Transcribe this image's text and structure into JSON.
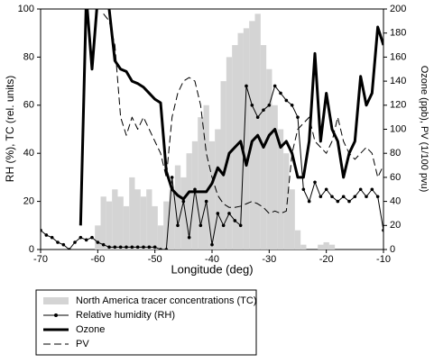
{
  "chart_data": {
    "type": "line",
    "xlabel": "Longitude (deg)",
    "ylabel": "RH (%), TC (rel. units)",
    "y2label": "Ozone (ppb), PV (1/100 pvu)",
    "x": [
      -70,
      -69,
      -68,
      -67,
      -66,
      -65,
      -64,
      -63,
      -62,
      -61,
      -60,
      -59,
      -58,
      -57,
      -56,
      -55,
      -54,
      -53,
      -52,
      -51,
      -50,
      -49,
      -48,
      -47,
      -46,
      -45,
      -44,
      -43,
      -42,
      -41,
      -40,
      -39,
      -38,
      -37,
      -36,
      -35,
      -34,
      -33,
      -32,
      -31,
      -30,
      -29,
      -28,
      -27,
      -26,
      -25,
      -24,
      -23,
      -22,
      -21,
      -20,
      -19,
      -18,
      -17,
      -16,
      -15,
      -14,
      -13,
      -12,
      -11,
      -10
    ],
    "xlim": [
      -70,
      -10
    ],
    "xticks": [
      -70,
      -60,
      -50,
      -40,
      -30,
      -20,
      -10
    ],
    "ylim": [
      0,
      100
    ],
    "yticks": [
      0,
      20,
      40,
      60,
      80,
      100
    ],
    "y2lim": [
      0,
      200
    ],
    "y2ticks": [
      0,
      20,
      40,
      60,
      80,
      100,
      120,
      140,
      160,
      180,
      200
    ],
    "series": [
      {
        "name": "North America tracer concentrations (TC)",
        "type": "bar",
        "color": "#d4d4d4",
        "values": [
          0,
          0,
          0,
          0,
          0,
          0,
          0,
          0,
          0,
          0,
          10,
          22,
          20,
          25,
          22,
          18,
          30,
          25,
          22,
          25,
          18,
          10,
          20,
          25,
          35,
          30,
          40,
          45,
          55,
          60,
          45,
          50,
          70,
          80,
          85,
          90,
          92,
          95,
          98,
          85,
          75,
          60,
          50,
          40,
          25,
          8,
          2,
          0,
          0,
          2,
          3,
          2,
          0,
          0,
          0,
          0,
          0,
          0,
          0,
          0,
          0
        ]
      },
      {
        "name": "Relative humidity (RH)",
        "type": "line",
        "marker": "circle",
        "color": "#000000",
        "width": 1,
        "values": [
          8,
          6,
          5,
          3,
          2,
          0,
          3,
          5,
          4,
          5,
          3,
          2,
          1,
          1,
          1,
          1,
          1,
          1,
          1,
          1,
          1,
          0,
          0,
          30,
          10,
          20,
          5,
          25,
          10,
          20,
          2,
          15,
          10,
          15,
          12,
          10,
          68,
          60,
          55,
          58,
          60,
          68,
          65,
          62,
          60,
          55,
          25,
          20,
          28,
          22,
          25,
          22,
          20,
          22,
          20,
          22,
          25,
          22,
          25,
          22,
          8
        ]
      },
      {
        "name": "Ozone",
        "type": "line",
        "axis": "y2",
        "color": "#000000",
        "width": 3,
        "values": [
          null,
          null,
          null,
          null,
          null,
          null,
          null,
          20,
          210,
          150,
          210,
          210,
          200,
          157,
          150,
          148,
          140,
          138,
          135,
          130,
          125,
          122,
          65,
          50,
          45,
          42,
          48,
          48,
          48,
          48,
          55,
          68,
          62,
          80,
          85,
          90,
          70,
          90,
          95,
          85,
          95,
          100,
          85,
          90,
          80,
          60,
          60,
          90,
          163,
          90,
          130,
          100,
          90,
          60,
          80,
          90,
          144,
          120,
          130,
          185,
          170
        ]
      },
      {
        "name": "PV",
        "type": "line",
        "axis": "y2",
        "dash": "8 4",
        "color": "#000000",
        "width": 1,
        "values": [
          null,
          null,
          null,
          null,
          null,
          null,
          null,
          null,
          null,
          null,
          null,
          196,
          190,
          170,
          110,
          95,
          110,
          100,
          110,
          100,
          90,
          80,
          60,
          110,
          130,
          140,
          143,
          140,
          120,
          80,
          60,
          45,
          38,
          35,
          35,
          36,
          38,
          40,
          38,
          35,
          30,
          32,
          30,
          32,
          80,
          100,
          105,
          110,
          90,
          85,
          80,
          90,
          110,
          90,
          80,
          75,
          80,
          85,
          80,
          60,
          70
        ]
      }
    ]
  }
}
